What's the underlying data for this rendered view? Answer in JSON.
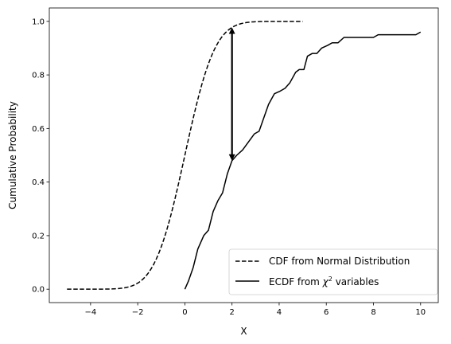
{
  "chart_data": {
    "type": "line",
    "title": "",
    "xlabel": "X",
    "ylabel": "Cumulative Probability",
    "xlim": [
      -5.75,
      10.75
    ],
    "ylim": [
      -0.05,
      1.05
    ],
    "xticks": [
      -4,
      -2,
      0,
      2,
      4,
      6,
      8,
      10
    ],
    "xtick_labels": [
      "−4",
      "−2",
      "0",
      "2",
      "4",
      "6",
      "8",
      "10"
    ],
    "yticks": [
      0.0,
      0.2,
      0.4,
      0.6,
      0.8,
      1.0
    ],
    "ytick_labels": [
      "0.0",
      "0.2",
      "0.4",
      "0.6",
      "0.8",
      "1.0"
    ],
    "grid": false,
    "legend_position": "bottom-right",
    "series": [
      {
        "name": "CDF from Normal Distribution",
        "style": "dashed",
        "color": "#000000",
        "kind": "normal_cdf",
        "x_range": [
          -5,
          5
        ]
      },
      {
        "name": "ECDF from χ² variables",
        "legend_prefix": "ECDF from ",
        "legend_symbol": "χ",
        "legend_superscript": "2",
        "legend_suffix": " variables",
        "style": "solid",
        "color": "#000000",
        "x": [
          0.0,
          0.15,
          0.35,
          0.55,
          0.8,
          1.0,
          1.2,
          1.4,
          1.6,
          1.8,
          2.0,
          2.2,
          2.45,
          2.7,
          2.95,
          3.15,
          3.35,
          3.55,
          3.8,
          4.05,
          4.25,
          4.45,
          4.7,
          4.85,
          5.05,
          5.2,
          5.4,
          5.6,
          5.8,
          6.05,
          6.25,
          6.5,
          6.75,
          7.2,
          7.7,
          8.0,
          8.2,
          9.0,
          9.8,
          10.0
        ],
        "y": [
          0.0,
          0.03,
          0.08,
          0.15,
          0.2,
          0.22,
          0.29,
          0.33,
          0.36,
          0.43,
          0.48,
          0.5,
          0.52,
          0.55,
          0.58,
          0.59,
          0.64,
          0.69,
          0.73,
          0.74,
          0.75,
          0.77,
          0.81,
          0.82,
          0.82,
          0.87,
          0.88,
          0.88,
          0.9,
          0.91,
          0.92,
          0.92,
          0.94,
          0.94,
          0.94,
          0.94,
          0.95,
          0.95,
          0.95,
          0.96
        ]
      }
    ],
    "annotations": [
      {
        "type": "double-arrow",
        "x": 2.0,
        "y_from": 0.48,
        "y_to": 0.977
      }
    ]
  }
}
